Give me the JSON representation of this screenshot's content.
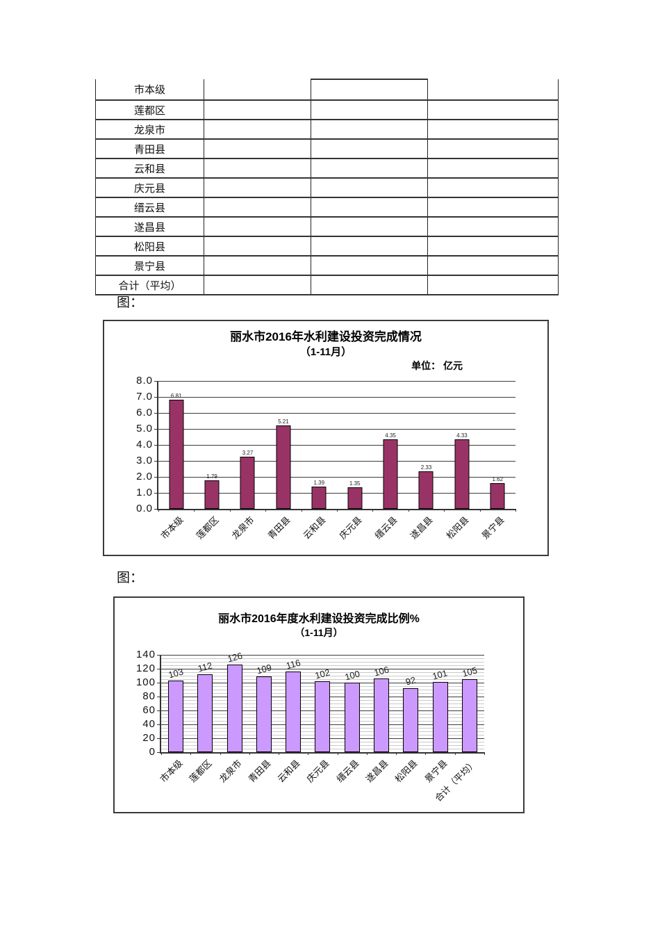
{
  "figures": {
    "label1": "图：",
    "label2": "图："
  },
  "table": {
    "row_headers": [
      "市本级",
      "莲都区",
      "龙泉市",
      "青田县",
      "云和县",
      "庆元县",
      "缙云县",
      "遂昌县",
      "松阳县",
      "景宁县",
      "合计（平均）"
    ],
    "empty_data_columns": 3
  },
  "chart_data": [
    {
      "type": "bar",
      "title": "丽水市2016年水利建设投资完成情况",
      "subtitle": "（1-11月）",
      "unit_label": "单位： 亿元",
      "categories": [
        "市本级",
        "莲都区",
        "龙泉市",
        "青田县",
        "云和县",
        "庆元县",
        "缙云县",
        "遂昌县",
        "松阳县",
        "景宁县"
      ],
      "values": [
        6.81,
        1.79,
        3.27,
        5.21,
        1.39,
        1.35,
        4.35,
        2.33,
        4.33,
        1.62
      ],
      "value_labels": [
        "6.81",
        "1.79",
        "3.27",
        "5.21",
        "1.39",
        "1.35",
        "4.35",
        "2.33",
        "4.33",
        "1.62"
      ],
      "ylim": [
        0,
        8
      ],
      "ytick_step": 1,
      "ytick_labels": [
        "8.0",
        "7.0",
        "6.0",
        "5.0",
        "4.0",
        "3.0",
        "2.0",
        "1.0",
        "0.0"
      ],
      "bar_color": "#993366",
      "bar_border_color": "#000000",
      "grid": "horizontal-major",
      "legend": "none"
    },
    {
      "type": "bar",
      "title": "丽水市2016年度水利建设投资完成比例%",
      "subtitle": "（1-11月）",
      "unit_label": "",
      "categories": [
        "市本级",
        "莲都区",
        "龙泉市",
        "青田县",
        "云和县",
        "庆元县",
        "缙云县",
        "遂昌县",
        "松阳县",
        "景宁县",
        "合计（平均）"
      ],
      "values": [
        103,
        112,
        126,
        109,
        116,
        102,
        100,
        106,
        92,
        101,
        105
      ],
      "value_labels": [
        "103",
        "112",
        "126",
        "109",
        "116",
        "102",
        "100",
        "106",
        "92",
        "101",
        "105"
      ],
      "ylim": [
        0,
        140
      ],
      "ytick_step": 20,
      "minor_grid_step": 5,
      "ytick_labels": [
        "140",
        "120",
        "100",
        "80",
        "60",
        "40",
        "20",
        "0"
      ],
      "bar_color": "#CC99FF",
      "bar_border_color": "#000000",
      "grid": "horizontal-major-minor",
      "legend": "none"
    }
  ]
}
